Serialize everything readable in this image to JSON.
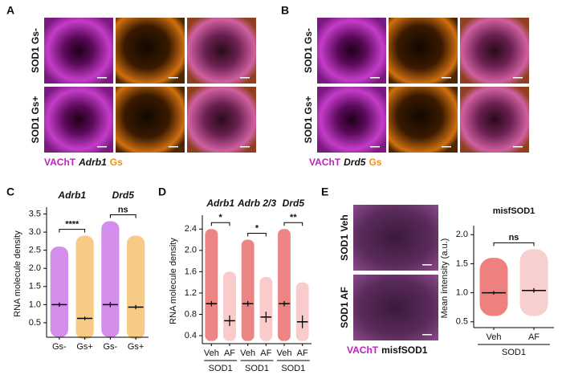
{
  "panel_a": {
    "label": "A",
    "rows": [
      "SOD1 Gs-",
      "SOD1 Gs+"
    ],
    "caption": [
      "VAChT",
      "Adrb1",
      "Gs"
    ]
  },
  "panel_b": {
    "label": "B",
    "rows": [
      "SOD1 Gs-",
      "SOD1 Gs+"
    ],
    "caption": [
      "VAChT",
      "Drd5",
      "Gs"
    ]
  },
  "panel_e_images": {
    "label": "E",
    "rows": [
      "SOD1 Veh",
      "SOD1 AF"
    ],
    "caption": [
      "VAChT",
      "misfSOD1"
    ]
  },
  "chart_data": [
    {
      "type": "dot",
      "panel_label": "C",
      "ylabel": "RNA molecule density",
      "group_titles": [
        "Adrb1",
        "Drd5"
      ],
      "significance": [
        "****",
        "ns"
      ],
      "categories": [
        "Gs-",
        "Gs+",
        "Gs-",
        "Gs+"
      ],
      "colors": [
        "#b030d8",
        "#f0a020",
        "#b030d8",
        "#f0a020"
      ],
      "values": [
        1.0,
        0.62,
        1.0,
        0.93
      ],
      "errors": [
        0.06,
        0.05,
        0.07,
        0.06
      ],
      "ranges": [
        [
          0.1,
          2.6
        ],
        [
          0.05,
          2.9
        ],
        [
          0.1,
          3.3
        ],
        [
          0.05,
          2.9
        ]
      ],
      "ylim": [
        0.1,
        3.6
      ],
      "yticks": [
        {
          "value": 0.5,
          "label": "0.5"
        },
        {
          "value": 1,
          "label": "1.0"
        },
        {
          "value": 1.5,
          "label": "1.5"
        },
        {
          "value": 2,
          "label": "2.0"
        },
        {
          "value": 2.5,
          "label": "2.5"
        },
        {
          "value": 3,
          "label": "3.0"
        },
        {
          "value": 3.5,
          "label": "3.5"
        }
      ]
    },
    {
      "type": "dot",
      "panel_label": "D",
      "ylabel": "RNA molecule density",
      "group_titles": [
        "Adrb1",
        "Adrb 2/3",
        "Drd5"
      ],
      "significance": [
        "*",
        "*",
        "**"
      ],
      "group_footer": [
        "SOD1",
        "SOD1",
        "SOD1"
      ],
      "categories": [
        "Veh",
        "AF",
        "Veh",
        "AF",
        "Veh",
        "AF"
      ],
      "colors": [
        "#e02020",
        "#f4a0a0",
        "#e02020",
        "#f4a0a0",
        "#e02020",
        "#f4a0a0"
      ],
      "values": [
        1.0,
        0.68,
        1.0,
        0.75,
        1.0,
        0.66
      ],
      "errors": [
        0.05,
        0.1,
        0.05,
        0.1,
        0.05,
        0.12
      ],
      "ranges": [
        [
          0.3,
          2.4
        ],
        [
          0.3,
          1.6
        ],
        [
          0.3,
          2.2
        ],
        [
          0.3,
          1.5
        ],
        [
          0.3,
          2.4
        ],
        [
          0.3,
          1.4
        ]
      ],
      "ylim": [
        0.25,
        2.6
      ],
      "yticks": [
        {
          "value": 0.4,
          "label": "0.4"
        },
        {
          "value": 0.8,
          "label": "0.8"
        },
        {
          "value": 1.2,
          "label": "1.2"
        },
        {
          "value": 1.6,
          "label": "1.6"
        },
        {
          "value": 2,
          "label": "2.0"
        },
        {
          "value": 2.4,
          "label": "2.4"
        }
      ]
    },
    {
      "type": "dot",
      "panel_label": "",
      "title": "misfSOD1",
      "ylabel": "Mean intensity (a.u.)",
      "significance": [
        "ns"
      ],
      "group_footer": [
        "SOD1"
      ],
      "categories": [
        "Veh",
        "AF"
      ],
      "colors": [
        "#e01818",
        "#f3a7a7"
      ],
      "values": [
        1.0,
        1.04
      ],
      "errors": [
        0.03,
        0.04
      ],
      "ranges": [
        [
          0.6,
          1.6
        ],
        [
          0.6,
          1.75
        ]
      ],
      "ylim": [
        0.4,
        2.1
      ],
      "yticks": [
        {
          "value": 0.5,
          "label": "0.5"
        },
        {
          "value": 1,
          "label": "1.0"
        },
        {
          "value": 1.5,
          "label": "1.5"
        },
        {
          "value": 2,
          "label": "2.0"
        }
      ]
    }
  ]
}
